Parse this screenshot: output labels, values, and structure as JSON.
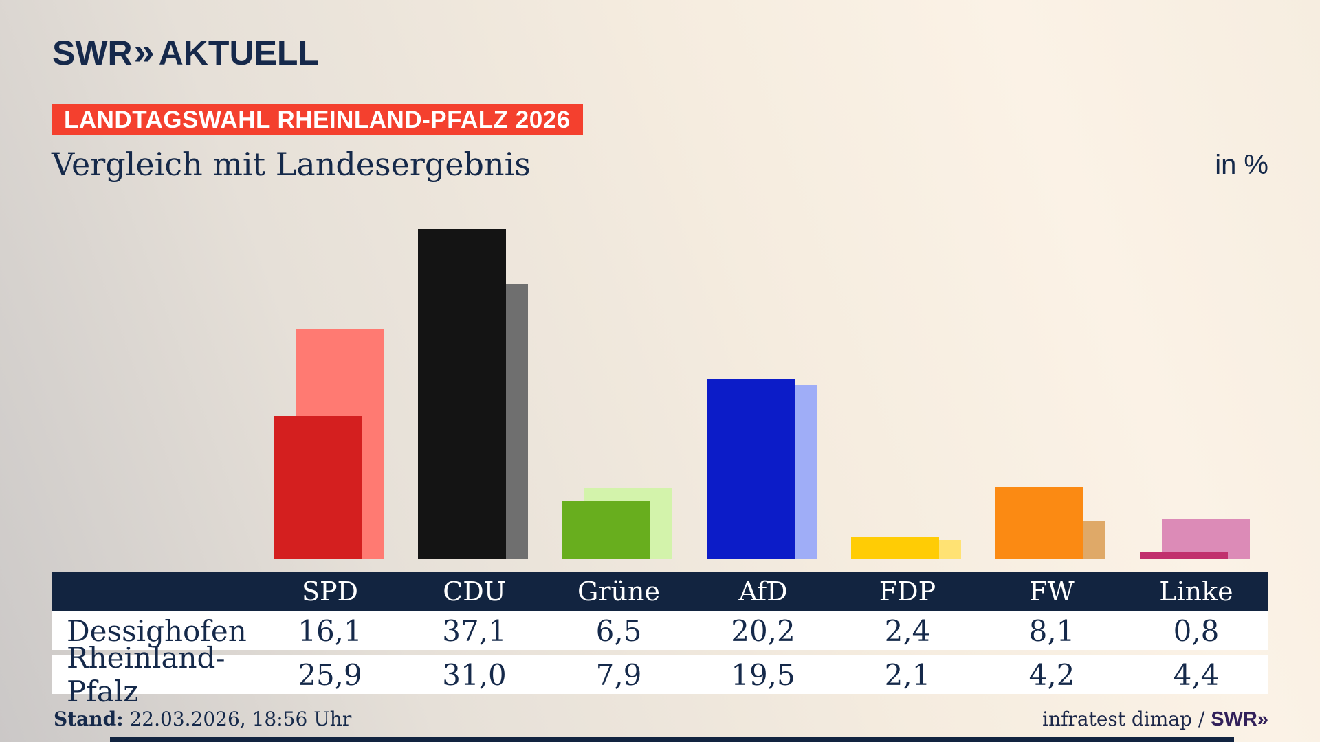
{
  "header": {
    "logo": {
      "swr": "SWR",
      "chevrons": "»",
      "aktuell": "AKTUELL"
    },
    "banner": "LANDTAGSWAHL RHEINLAND-PFALZ 2026",
    "title": "Vergleich mit Landesergebnis",
    "unit_label": "in %"
  },
  "chart_data": {
    "type": "bar",
    "title": "Vergleich mit Landesergebnis",
    "unit": "%",
    "categories": [
      "SPD",
      "CDU",
      "Grüne",
      "AfD",
      "FDP",
      "FW",
      "Linke"
    ],
    "series": [
      {
        "name": "Dessighofen",
        "role": "front",
        "values": [
          16.1,
          37.1,
          6.5,
          20.2,
          2.4,
          8.1,
          0.8
        ]
      },
      {
        "name": "Rheinland-Pfalz",
        "role": "back",
        "values": [
          25.9,
          31.0,
          7.9,
          19.5,
          2.1,
          4.2,
          4.4
        ]
      }
    ],
    "colors": {
      "front": [
        "#d41f1f",
        "#141414",
        "#68ae1e",
        "#0c1cc8",
        "#ffcc05",
        "#fb8a13",
        "#c12f6d"
      ],
      "back": [
        "#ff7a72",
        "#6f6f6f",
        "#d3f3ab",
        "#9fadf7",
        "#ffe273",
        "#dfa968",
        "#dc8bb7"
      ]
    },
    "legend_position": "none",
    "grid": false,
    "ylim": [
      0,
      40
    ]
  },
  "table": {
    "rows": [
      {
        "label": "Dessighofen",
        "values": [
          "16,1",
          "37,1",
          "6,5",
          "20,2",
          "2,4",
          "8,1",
          "0,8"
        ]
      },
      {
        "label": "Rheinland-Pfalz",
        "values": [
          "25,9",
          "31,0",
          "7,9",
          "19,5",
          "2,1",
          "4,2",
          "4,4"
        ]
      }
    ]
  },
  "footer": {
    "stand_label": "Stand:",
    "stand_value": " 22.03.2026, 18:56 Uhr",
    "source": "infratest dimap / ",
    "source_logo": "SWR»"
  },
  "colors": {
    "navy": "#122440",
    "text_navy": "#15294a",
    "banner_red": "#f4402e",
    "footer_logo_purple": "#32205a",
    "row_white": "#ffffff"
  }
}
